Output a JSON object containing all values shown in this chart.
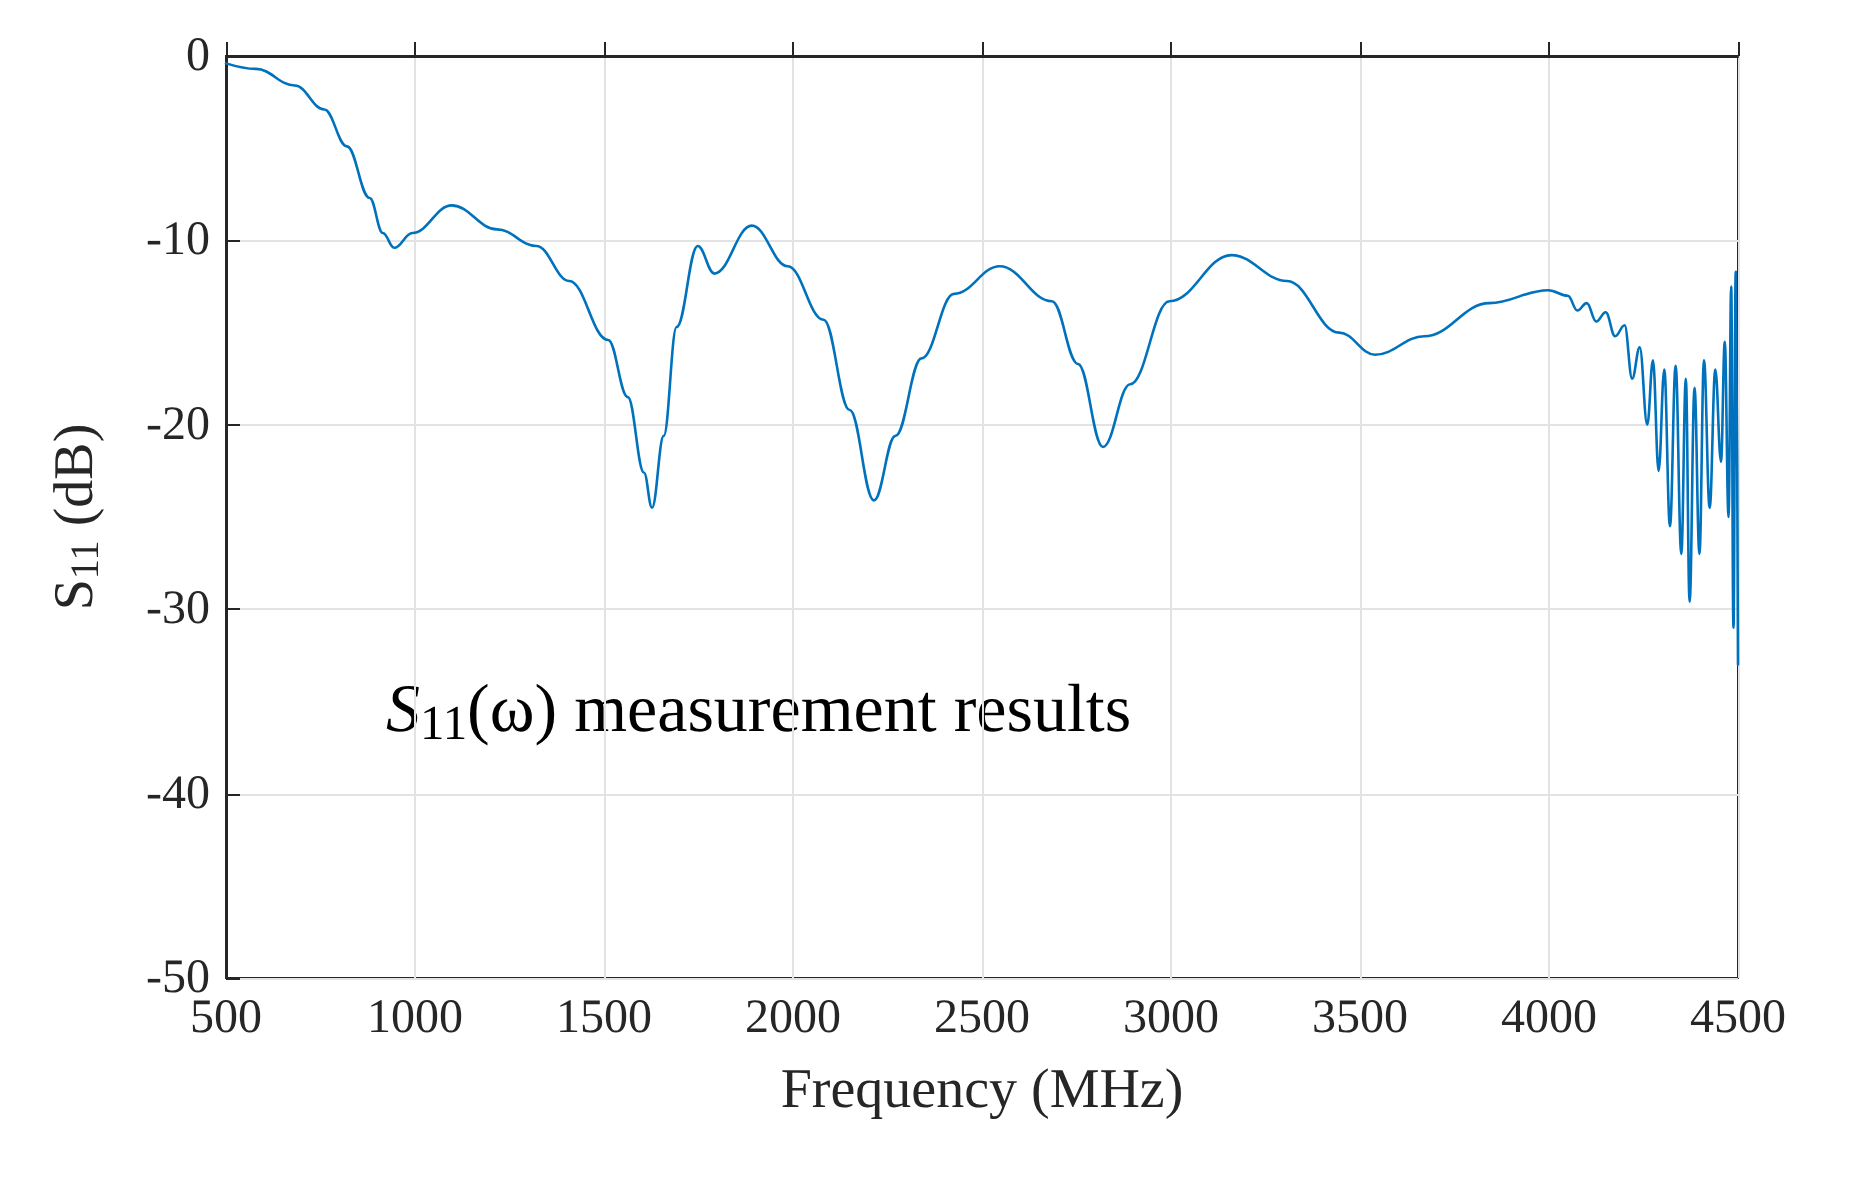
{
  "chart_data": {
    "type": "line",
    "xlabel": "Frequency (MHz)",
    "ylabel": "S$_{11}$ (dB)",
    "annotations": [
      "S$_{11}$(ω) measurement results"
    ],
    "xlim": [
      500,
      4500
    ],
    "xticks": [
      500,
      1000,
      1500,
      2000,
      2500,
      3000,
      3500,
      4000,
      4500
    ],
    "ylim": [
      -50,
      0
    ],
    "yticks": [
      -50,
      -40,
      -30,
      -20,
      -10,
      0
    ],
    "grid": true,
    "marker": "none",
    "line_style": "solid",
    "series": [
      {
        "color": "#0072bd",
        "x": [
          500,
          579,
          682,
          760,
          820,
          880,
          915,
          945,
          993,
          1097,
          1217,
          1321,
          1408,
          1511,
          1563,
          1606,
          1627,
          1658,
          1692,
          1748,
          1792,
          1891,
          1986,
          2081,
          2150,
          2214,
          2271,
          2340,
          2426,
          2547,
          2685,
          2754,
          2820,
          2892,
          2996,
          3160,
          3307,
          3445,
          3540,
          3670,
          3842,
          3998,
          4050,
          4075,
          4100,
          4125,
          4150,
          4175,
          4200,
          4220,
          4240,
          4260,
          4275,
          4290,
          4305,
          4320,
          4335,
          4350,
          4362,
          4372,
          4385,
          4398,
          4410,
          4425,
          4440,
          4455,
          4465,
          4475,
          4482,
          4488,
          4494,
          4500
        ],
        "values": [
          -0.4,
          -0.7,
          -1.6,
          -2.9,
          -4.9,
          -7.7,
          -9.6,
          -10.4,
          -9.6,
          -8.1,
          -9.4,
          -10.3,
          -12.2,
          -15.4,
          -18.5,
          -22.6,
          -24.5,
          -20.6,
          -14.7,
          -10.3,
          -11.8,
          -9.2,
          -11.4,
          -14.3,
          -19.2,
          -24.1,
          -20.6,
          -16.4,
          -12.9,
          -11.4,
          -13.3,
          -16.7,
          -21.2,
          -17.8,
          -13.3,
          -10.8,
          -12.2,
          -15.0,
          -16.2,
          -15.2,
          -13.4,
          -12.7,
          -13.0,
          -13.8,
          -13.4,
          -14.4,
          -13.9,
          -15.2,
          -14.6,
          -17.5,
          -15.8,
          -20.0,
          -16.5,
          -22.5,
          -17.0,
          -25.5,
          -16.8,
          -27.0,
          -17.5,
          -29.6,
          -18.0,
          -27.0,
          -16.5,
          -24.5,
          -17.0,
          -22.0,
          -15.5,
          -25.0,
          -12.5,
          -31.0,
          -11.7,
          -33.0
        ]
      }
    ]
  }
}
